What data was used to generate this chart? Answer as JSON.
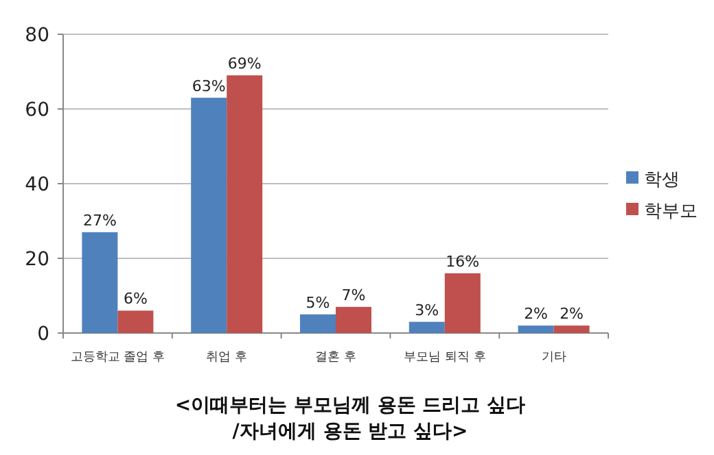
{
  "chart_data": {
    "type": "bar",
    "title": "<이때부터는 부모님께 용돈 드리고 싶다\n/자녀에게 용돈 받고 싶다>",
    "categories": [
      "고등학교 졸업 후",
      "취업 후",
      "결혼 후",
      "부모님 퇴직 후",
      "기타"
    ],
    "series": [
      {
        "name": "학생",
        "color": "#4f81bd",
        "values": [
          27,
          63,
          5,
          3,
          2
        ],
        "value_labels": [
          "27%",
          "63%",
          "5%",
          "3%",
          "2%"
        ]
      },
      {
        "name": "학부모",
        "color": "#c0504d",
        "values": [
          6,
          69,
          7,
          16,
          2
        ],
        "value_labels": [
          "6%",
          "69%",
          "7%",
          "16%",
          "2%"
        ]
      }
    ],
    "ylim": [
      0,
      80
    ],
    "yticks": [
      0,
      20,
      40,
      60,
      80
    ],
    "grid": "y",
    "legend": "right"
  }
}
